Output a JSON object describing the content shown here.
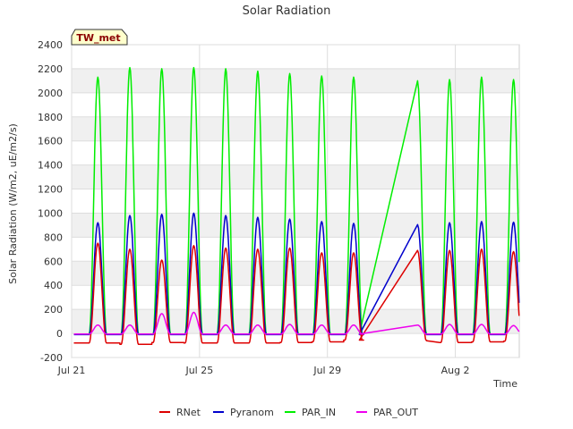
{
  "chart_data": {
    "type": "line",
    "title": "Solar Radiation",
    "xlabel": "Time",
    "ylabel": "Solar Radiation (W/m2, uE/m2/s)",
    "badge": "TW_met",
    "xlim": [
      0,
      14
    ],
    "ylim": [
      -200,
      2400
    ],
    "y_ticks": [
      -200,
      0,
      200,
      400,
      600,
      800,
      1000,
      1200,
      1400,
      1600,
      1800,
      2000,
      2200,
      2400
    ],
    "x_ticks": [
      {
        "value": 0,
        "label": "Jul 21"
      },
      {
        "value": 4,
        "label": "Jul 25"
      },
      {
        "value": 8,
        "label": "Jul 29"
      },
      {
        "value": 12,
        "label": "Aug 2"
      }
    ],
    "grid": "horizontal bands",
    "legend_position": "bottom",
    "series": [
      {
        "name": "RNet",
        "color": "#dd0000",
        "peaks": [
          750,
          700,
          610,
          730,
          710,
          700,
          710,
          670,
          670,
          690,
          690,
          700,
          680
        ],
        "night": [
          -80,
          -90,
          -75,
          -80,
          -80,
          -80,
          -75,
          -70,
          -55,
          -60,
          -75,
          -70,
          -65
        ]
      },
      {
        "name": "Pyranom",
        "color": "#0000cc",
        "peaks": [
          920,
          980,
          990,
          1000,
          980,
          965,
          950,
          930,
          915,
          905,
          920,
          930,
          925
        ],
        "night": [
          -10,
          -10,
          -10,
          -10,
          -10,
          -10,
          -10,
          -10,
          -10,
          -10,
          -10,
          -10,
          -10
        ]
      },
      {
        "name": "PAR_IN",
        "color": "#00ee00",
        "peaks": [
          2130,
          2210,
          2200,
          2210,
          2200,
          2180,
          2160,
          2140,
          2130,
          2100,
          2110,
          2130,
          2110
        ],
        "night": [
          -5,
          -5,
          -5,
          -5,
          -5,
          -5,
          -5,
          -5,
          -5,
          -5,
          -5,
          -5,
          -5
        ]
      },
      {
        "name": "PAR_OUT",
        "color": "#ee00ee",
        "peaks": [
          70,
          70,
          165,
          175,
          70,
          70,
          75,
          70,
          70,
          70,
          75,
          75,
          65
        ],
        "night": [
          -5,
          -5,
          -5,
          -5,
          -5,
          -5,
          -5,
          -5,
          -5,
          -5,
          -5,
          -5,
          -5
        ]
      }
    ]
  }
}
